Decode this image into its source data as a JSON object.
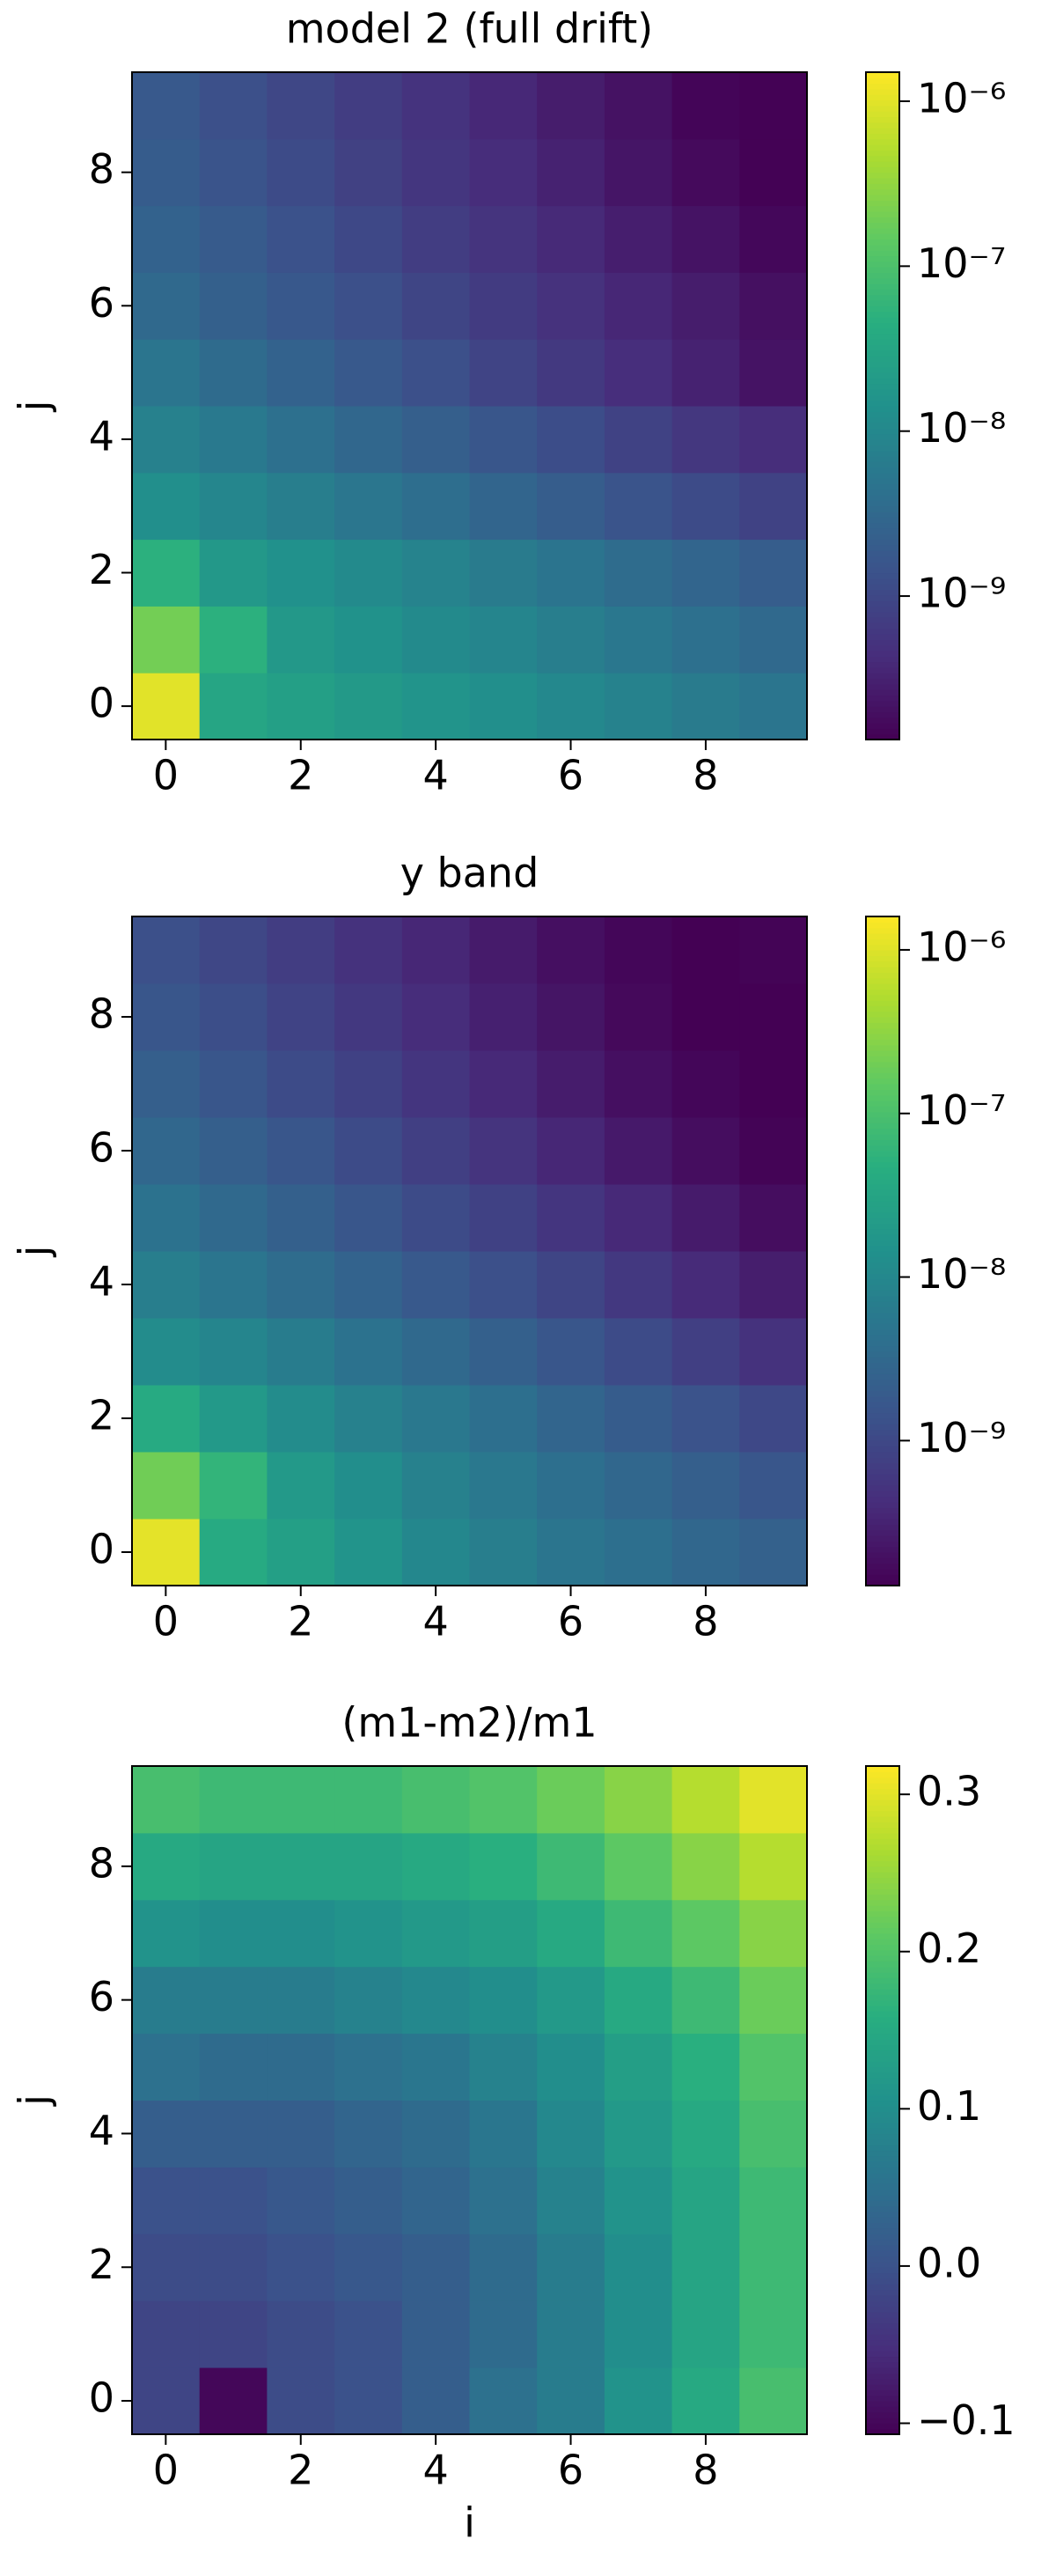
{
  "chart_data": [
    {
      "type": "heatmap",
      "title": "model 2 (full drift)",
      "ylabel": "j",
      "colormap": "viridis",
      "x": [
        0,
        1,
        2,
        3,
        4,
        5,
        6,
        7,
        8,
        9
      ],
      "y": [
        0,
        1,
        2,
        3,
        4,
        5,
        6,
        7,
        8,
        9
      ],
      "xlim": [
        -0.5,
        9.5
      ],
      "ylim": [
        -0.5,
        9.5
      ],
      "xticks": [
        0,
        2,
        4,
        6,
        8
      ],
      "yticks": [
        0,
        2,
        4,
        6,
        8
      ],
      "values": [
        [
          1e-06,
          3.2e-08,
          2.5e-08,
          2e-08,
          1.6e-08,
          1.3e-08,
          1e-08,
          8e-09,
          6.3e-09,
          5e-09
        ],
        [
          2e-07,
          5e-08,
          1.9e-08,
          1.5e-08,
          1.1e-08,
          9e-09,
          7e-09,
          5.4e-09,
          4.2e-09,
          3.2e-09
        ],
        [
          5e-08,
          1.9e-08,
          1.4e-08,
          1.1e-08,
          8.3e-09,
          6.3e-09,
          4.8e-09,
          3.6e-09,
          2.8e-09,
          2.1e-09
        ],
        [
          1.3e-08,
          9.3e-09,
          6.9e-09,
          5.1e-09,
          3.8e-09,
          2.8e-09,
          2.1e-09,
          1.5e-09,
          1.1e-09,
          8.5e-10
        ],
        [
          7.9e-09,
          5.8e-09,
          4.2e-09,
          3e-09,
          2.2e-09,
          1.6e-09,
          1.2e-09,
          8.3e-10,
          6e-10,
          4.4e-10
        ],
        [
          5e-09,
          3.5e-09,
          2.5e-09,
          1.8e-09,
          1.3e-09,
          8.9e-10,
          6.3e-10,
          4.5e-10,
          3.2e-10,
          2.2e-10
        ],
        [
          3.2e-09,
          2.3e-09,
          1.7e-09,
          1.3e-09,
          9.1e-10,
          6.8e-10,
          5e-10,
          3.7e-10,
          2.8e-10,
          2e-10
        ],
        [
          2.5e-09,
          1.9e-09,
          1.4e-09,
          1e-09,
          7.2e-10,
          5.4e-10,
          4e-10,
          2.9e-10,
          2.2e-10,
          1.6e-10
        ],
        [
          2e-09,
          1.5e-09,
          1.1e-09,
          8e-10,
          5.8e-10,
          4.3e-10,
          3.2e-10,
          2.3e-10,
          1.7e-10,
          1.4e-10
        ],
        [
          1.8e-09,
          1.3e-09,
          9.8e-10,
          7.2e-10,
          5.2e-10,
          3.8e-10,
          2.8e-10,
          2.1e-10,
          1.5e-10,
          1.4e-10
        ]
      ],
      "colorbar": {
        "scale": "log",
        "clim": [
          1.35e-10,
          1.5e-06
        ],
        "ticks": [
          {
            "value": 1e-09,
            "label": "10⁻⁹"
          },
          {
            "value": 1e-08,
            "label": "10⁻⁸"
          },
          {
            "value": 1e-07,
            "label": "10⁻⁷"
          },
          {
            "value": 1e-06,
            "label": "10⁻⁶"
          }
        ]
      }
    },
    {
      "type": "heatmap",
      "title": "y band",
      "ylabel": "j",
      "colormap": "viridis",
      "x": [
        0,
        1,
        2,
        3,
        4,
        5,
        6,
        7,
        8,
        9
      ],
      "y": [
        0,
        1,
        2,
        3,
        4,
        5,
        6,
        7,
        8,
        9
      ],
      "xlim": [
        -0.5,
        9.5
      ],
      "ylim": [
        -0.5,
        9.5
      ],
      "xticks": [
        0,
        2,
        4,
        6,
        8
      ],
      "yticks": [
        0,
        2,
        4,
        6,
        8
      ],
      "values": [
        [
          1.1e-06,
          4e-08,
          2.5e-08,
          1.6e-08,
          1e-08,
          7e-09,
          5e-09,
          4e-09,
          3e-09,
          2.4e-09
        ],
        [
          2e-07,
          6e-08,
          2e-08,
          1.3e-08,
          8e-09,
          5.5e-09,
          4e-09,
          3e-09,
          2.2e-09,
          1.6e-09
        ],
        [
          4e-08,
          2e-08,
          1.2e-08,
          8e-09,
          5.5e-09,
          4e-09,
          2.8e-09,
          2e-09,
          1.4e-09,
          1e-09
        ],
        [
          1.2e-08,
          9e-09,
          6.5e-09,
          4.5e-09,
          3.2e-09,
          2.3e-09,
          1.6e-09,
          1.1e-09,
          7.5e-10,
          5e-10
        ],
        [
          7e-09,
          5e-09,
          3.6e-09,
          2.6e-09,
          1.8e-09,
          1.3e-09,
          9e-10,
          6e-10,
          4e-10,
          2.8e-10
        ],
        [
          4.5e-09,
          3.2e-09,
          2.3e-09,
          1.6e-09,
          1.1e-09,
          8e-10,
          5.5e-10,
          3.8e-10,
          2.6e-10,
          1.8e-10
        ],
        [
          3e-09,
          2.2e-09,
          1.6e-09,
          1.1e-09,
          7.5e-10,
          5.2e-10,
          3.6e-10,
          2.5e-10,
          1.8e-10,
          1.4e-10
        ],
        [
          2.2e-09,
          1.6e-09,
          1.1e-09,
          8e-10,
          5.5e-10,
          3.8e-10,
          2.7e-10,
          1.9e-10,
          1.5e-10,
          1.3e-10
        ],
        [
          1.6e-09,
          1.2e-09,
          8.5e-10,
          6e-10,
          4.2e-10,
          3e-10,
          2.2e-10,
          1.6e-10,
          1.3e-10,
          1.3e-10
        ],
        [
          1.3e-09,
          9.5e-10,
          7e-10,
          5e-10,
          3.6e-10,
          2.6e-10,
          1.9e-10,
          1.5e-10,
          1.3e-10,
          1.4e-10
        ]
      ],
      "colorbar": {
        "scale": "log",
        "clim": [
          1.3e-10,
          1.6e-06
        ],
        "ticks": [
          {
            "value": 1e-09,
            "label": "10⁻⁹"
          },
          {
            "value": 1e-08,
            "label": "10⁻⁸"
          },
          {
            "value": 1e-07,
            "label": "10⁻⁷"
          },
          {
            "value": 1e-06,
            "label": "10⁻⁶"
          }
        ]
      }
    },
    {
      "type": "heatmap",
      "title": "(m1-m2)/m1",
      "xlabel": "i",
      "ylabel": "j",
      "colormap": "viridis",
      "x": [
        0,
        1,
        2,
        3,
        4,
        5,
        6,
        7,
        8,
        9
      ],
      "y": [
        0,
        1,
        2,
        3,
        4,
        5,
        6,
        7,
        8,
        9
      ],
      "xlim": [
        -0.5,
        9.5
      ],
      "ylim": [
        -0.5,
        9.5
      ],
      "xticks": [
        0,
        2,
        4,
        6,
        8
      ],
      "yticks": [
        0,
        2,
        4,
        6,
        8
      ],
      "values": [
        [
          -0.02,
          -0.1,
          -0.01,
          0.0,
          0.02,
          0.05,
          0.07,
          0.11,
          0.15,
          0.19
        ],
        [
          -0.02,
          -0.02,
          -0.01,
          0.0,
          0.02,
          0.04,
          0.07,
          0.1,
          0.14,
          0.18
        ],
        [
          -0.01,
          -0.01,
          0.0,
          0.01,
          0.02,
          0.04,
          0.07,
          0.1,
          0.14,
          0.18
        ],
        [
          0.0,
          0.0,
          0.01,
          0.02,
          0.03,
          0.05,
          0.08,
          0.11,
          0.14,
          0.18
        ],
        [
          0.02,
          0.02,
          0.02,
          0.03,
          0.04,
          0.06,
          0.09,
          0.12,
          0.15,
          0.19
        ],
        [
          0.05,
          0.04,
          0.04,
          0.05,
          0.06,
          0.08,
          0.1,
          0.13,
          0.16,
          0.2
        ],
        [
          0.07,
          0.07,
          0.07,
          0.08,
          0.09,
          0.1,
          0.12,
          0.15,
          0.18,
          0.22
        ],
        [
          0.11,
          0.1,
          0.1,
          0.11,
          0.12,
          0.13,
          0.15,
          0.18,
          0.21,
          0.24
        ],
        [
          0.15,
          0.14,
          0.14,
          0.14,
          0.15,
          0.16,
          0.18,
          0.21,
          0.24,
          0.27
        ],
        [
          0.19,
          0.18,
          0.18,
          0.18,
          0.19,
          0.2,
          0.22,
          0.24,
          0.27,
          0.3
        ]
      ],
      "colorbar": {
        "scale": "linear",
        "clim": [
          -0.107,
          0.318
        ],
        "ticks": [
          {
            "value": -0.1,
            "label": "−0.1"
          },
          {
            "value": 0,
            "label": "0.0"
          },
          0.1,
          0.2,
          0.3
        ]
      }
    }
  ]
}
